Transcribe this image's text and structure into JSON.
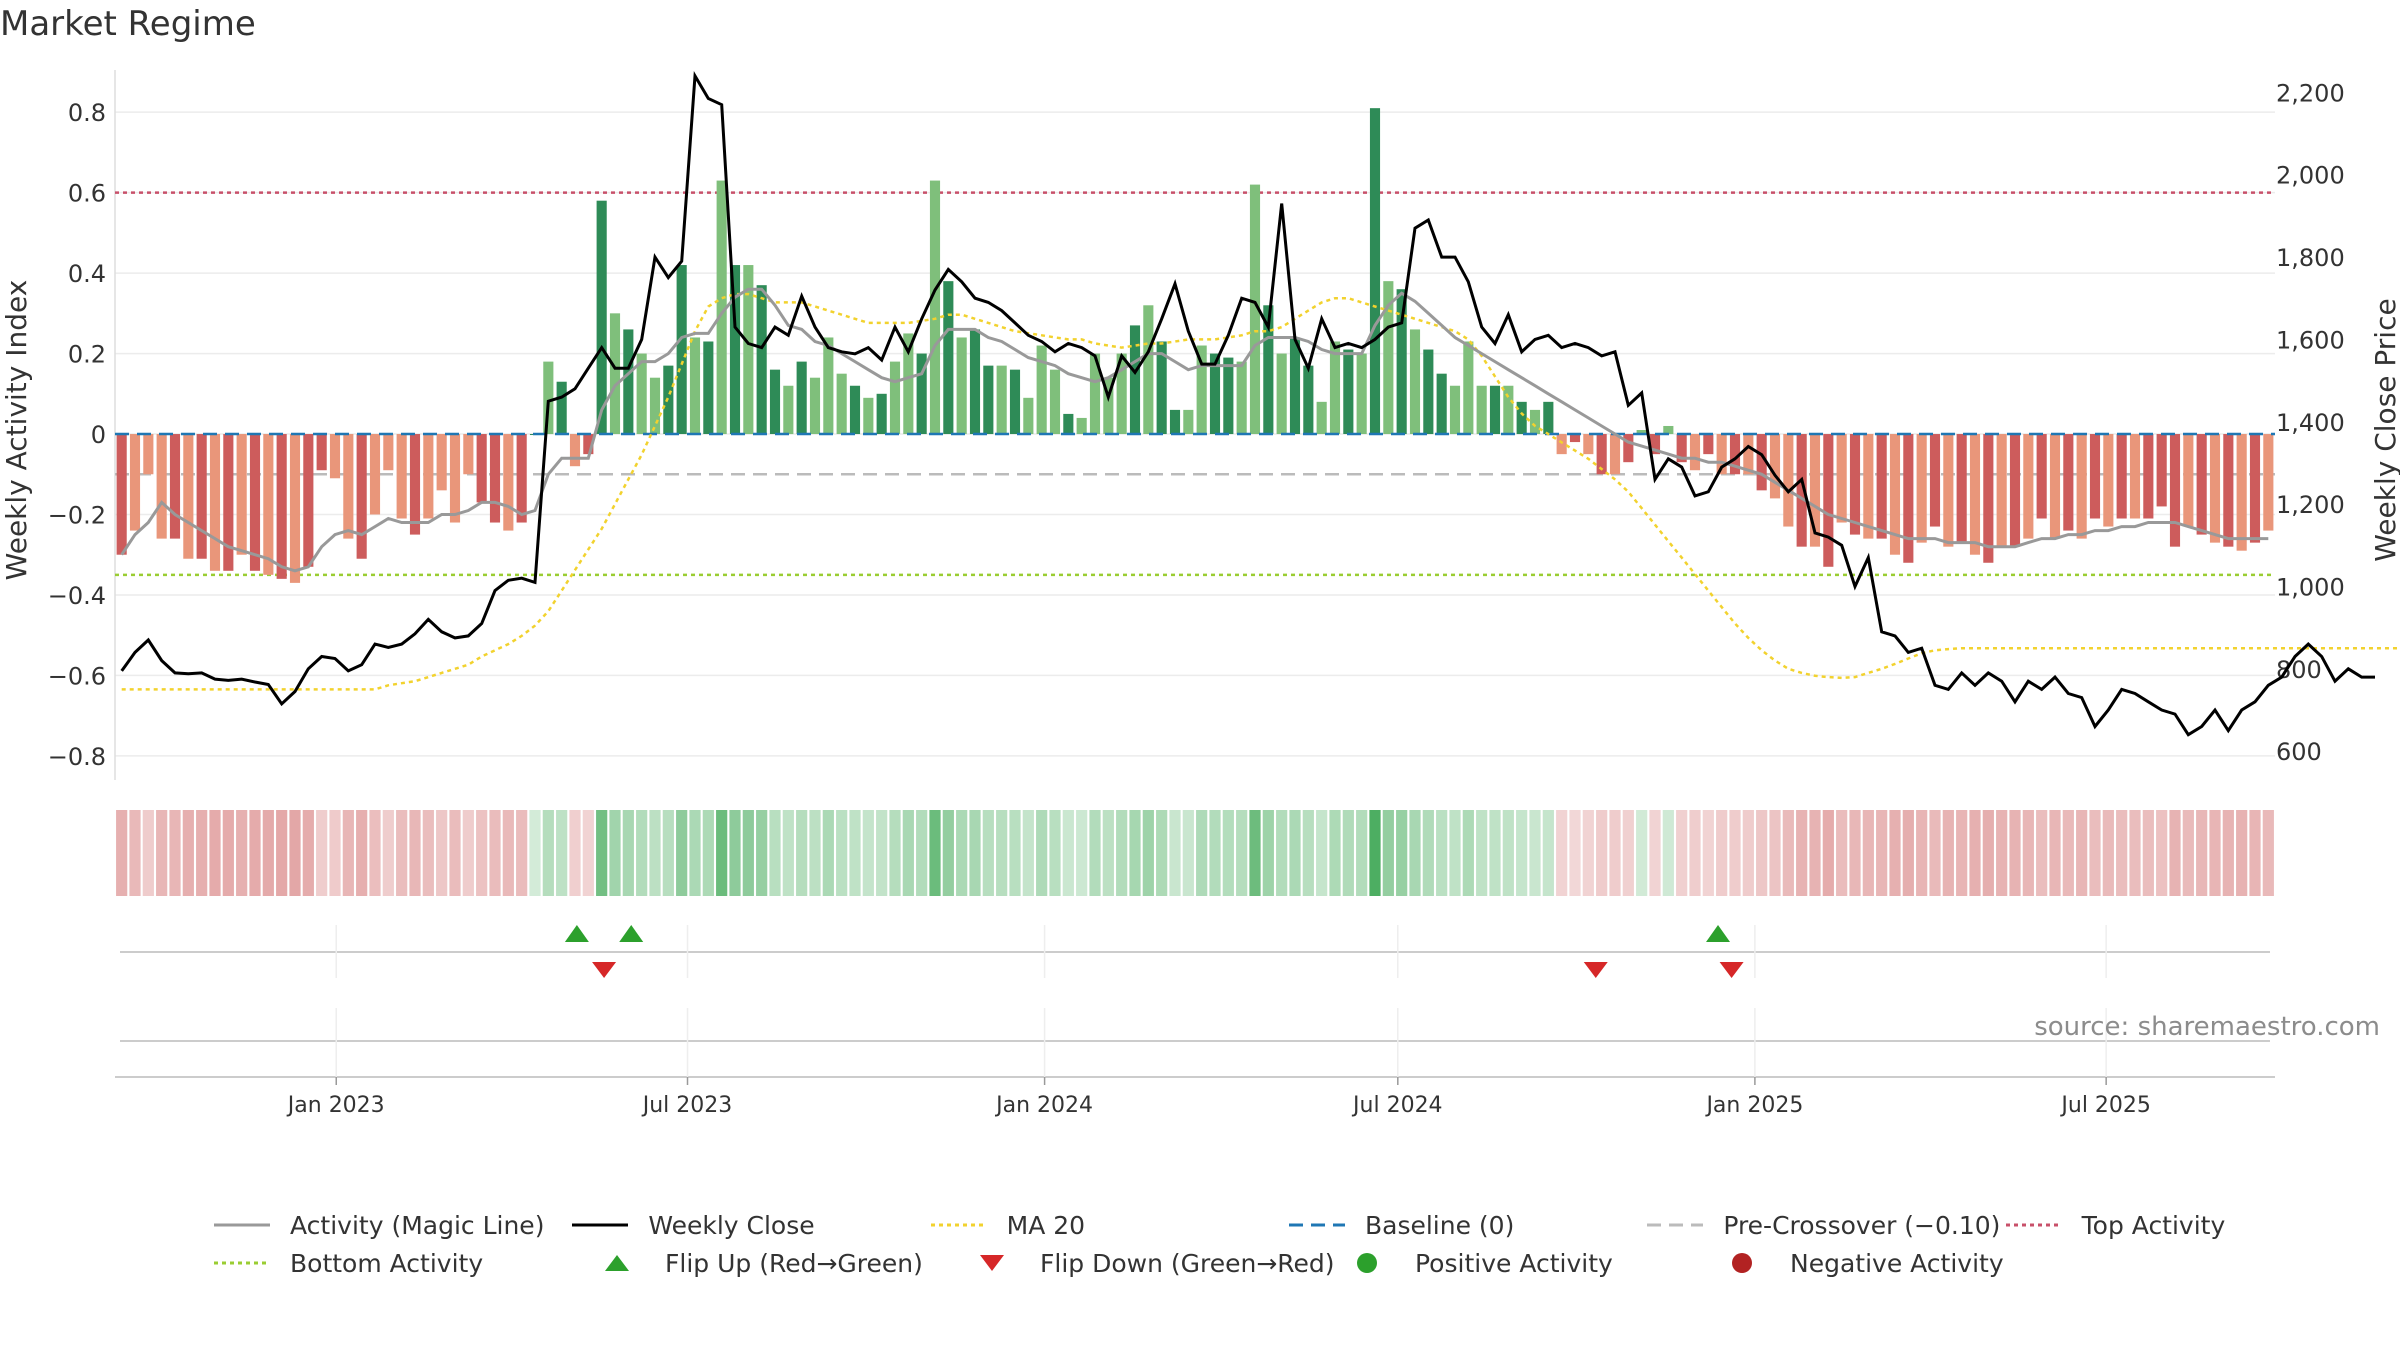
{
  "title": "Market Regime",
  "source": "source: sharemaestro.com",
  "colors": {
    "pos_strong": "#2e8b57",
    "pos_light": "#7fbf7b",
    "neg_strong": "#cd5c5c",
    "neg_light": "#e9967a",
    "activity_line": "#999999",
    "close_line": "#000000",
    "ma20": "#f2d22e",
    "baseline": "#1f77b4",
    "pre_crossover": "#bbbbbb",
    "top_activity": "#c8506a",
    "bottom_activity": "#9acd32",
    "flip_up": "#2ca02c",
    "flip_down": "#d62728"
  },
  "chart_data": {
    "type": "bar",
    "title": "Market Regime",
    "ylabel": "Weekly Activity Index",
    "y2label": "Weekly Close Price",
    "ylim": [
      -0.86,
      0.88
    ],
    "y2lim": [
      530,
      2230
    ],
    "yticks": [
      "0.8",
      "0.6",
      "0.4",
      "0.2",
      "0",
      "−0.2",
      "−0.4",
      "−0.6",
      "−0.8"
    ],
    "ytick_values": [
      0.8,
      0.6,
      0.4,
      0.2,
      0,
      -0.2,
      -0.4,
      -0.6,
      -0.8
    ],
    "y2ticks": [
      "2,200",
      "2,000",
      "1,800",
      "1,600",
      "1,400",
      "1,200",
      "1,000",
      "800",
      "600"
    ],
    "y2tick_values": [
      2200,
      2000,
      1800,
      1600,
      1400,
      1200,
      1000,
      800,
      600
    ],
    "x_start": "2022-09-09",
    "x_end": "2025-09-26",
    "xticks": [
      "Jan 2023",
      "Jul 2023",
      "Jan 2024",
      "Jul 2024",
      "Jan 2025",
      "Jul 2025"
    ],
    "xtick_dates": [
      "2023-01-01",
      "2023-07-01",
      "2024-01-01",
      "2024-07-01",
      "2025-01-01",
      "2025-07-01"
    ],
    "grid": true,
    "legend_placement": "bottom",
    "reference_lines": {
      "top_activity": 0.6,
      "bottom_activity": -0.35,
      "baseline": 0,
      "pre_crossover": -0.1
    },
    "activity_values": [
      -0.3,
      -0.24,
      -0.1,
      -0.26,
      -0.26,
      -0.31,
      -0.31,
      -0.34,
      -0.34,
      -0.3,
      -0.34,
      -0.35,
      -0.36,
      -0.37,
      -0.33,
      -0.09,
      -0.11,
      -0.26,
      -0.31,
      -0.2,
      -0.09,
      -0.21,
      -0.25,
      -0.21,
      -0.14,
      -0.22,
      -0.1,
      -0.17,
      -0.22,
      -0.24,
      -0.22,
      0.0,
      0.18,
      0.13,
      -0.08,
      -0.05,
      0.58,
      0.3,
      0.26,
      0.2,
      0.14,
      0.17,
      0.42,
      0.24,
      0.23,
      0.63,
      0.42,
      0.42,
      0.37,
      0.16,
      0.12,
      0.18,
      0.14,
      0.24,
      0.15,
      0.12,
      0.09,
      0.1,
      0.18,
      0.25,
      0.2,
      0.63,
      0.38,
      0.24,
      0.26,
      0.17,
      0.17,
      0.16,
      0.09,
      0.22,
      0.16,
      0.05,
      0.04,
      0.2,
      0.14,
      0.2,
      0.27,
      0.32,
      0.23,
      0.06,
      0.06,
      0.22,
      0.2,
      0.19,
      0.18,
      0.62,
      0.32,
      0.2,
      0.24,
      0.17,
      0.08,
      0.23,
      0.21,
      0.2,
      0.81,
      0.38,
      0.36,
      0.26,
      0.21,
      0.15,
      0.12,
      0.23,
      0.12,
      0.12,
      0.12,
      0.08,
      0.06,
      0.08,
      -0.05,
      -0.02,
      -0.05,
      -0.1,
      -0.1,
      -0.07,
      0.01,
      -0.05,
      0.02,
      -0.07,
      -0.09,
      -0.05,
      -0.1,
      -0.1,
      -0.1,
      -0.14,
      -0.16,
      -0.23,
      -0.28,
      -0.28,
      -0.33,
      -0.22,
      -0.25,
      -0.26,
      -0.26,
      -0.3,
      -0.32,
      -0.27,
      -0.23,
      -0.28,
      -0.27,
      -0.3,
      -0.32,
      -0.28,
      -0.28,
      -0.26,
      -0.21,
      -0.26,
      -0.24,
      -0.26,
      -0.21,
      -0.23,
      -0.21,
      -0.21,
      -0.21,
      -0.18,
      -0.28,
      -0.23,
      -0.25,
      -0.27,
      -0.28,
      -0.29,
      -0.27,
      -0.24
    ],
    "activity_magic_line": [
      -0.3,
      -0.25,
      -0.22,
      -0.17,
      -0.2,
      -0.22,
      -0.24,
      -0.26,
      -0.28,
      -0.29,
      -0.3,
      -0.31,
      -0.33,
      -0.34,
      -0.33,
      -0.28,
      -0.25,
      -0.24,
      -0.25,
      -0.23,
      -0.21,
      -0.22,
      -0.22,
      -0.22,
      -0.2,
      -0.2,
      -0.19,
      -0.17,
      -0.17,
      -0.18,
      -0.2,
      -0.19,
      -0.1,
      -0.06,
      -0.06,
      -0.06,
      0.06,
      0.12,
      0.15,
      0.18,
      0.18,
      0.2,
      0.24,
      0.25,
      0.25,
      0.3,
      0.34,
      0.36,
      0.36,
      0.32,
      0.27,
      0.26,
      0.23,
      0.22,
      0.2,
      0.18,
      0.16,
      0.14,
      0.13,
      0.14,
      0.15,
      0.22,
      0.26,
      0.26,
      0.26,
      0.24,
      0.23,
      0.21,
      0.19,
      0.18,
      0.17,
      0.15,
      0.14,
      0.13,
      0.14,
      0.16,
      0.18,
      0.2,
      0.2,
      0.18,
      0.16,
      0.17,
      0.17,
      0.17,
      0.17,
      0.22,
      0.24,
      0.24,
      0.24,
      0.23,
      0.21,
      0.2,
      0.2,
      0.2,
      0.27,
      0.32,
      0.35,
      0.33,
      0.3,
      0.27,
      0.24,
      0.22,
      0.2,
      0.18,
      0.16,
      0.14,
      0.12,
      0.1,
      0.08,
      0.06,
      0.04,
      0.02,
      0.0,
      -0.02,
      -0.03,
      -0.04,
      -0.05,
      -0.06,
      -0.06,
      -0.07,
      -0.07,
      -0.08,
      -0.09,
      -0.1,
      -0.12,
      -0.14,
      -0.16,
      -0.18,
      -0.2,
      -0.21,
      -0.22,
      -0.23,
      -0.24,
      -0.25,
      -0.26,
      -0.26,
      -0.26,
      -0.27,
      -0.27,
      -0.27,
      -0.28,
      -0.28,
      -0.28,
      -0.27,
      -0.26,
      -0.26,
      -0.25,
      -0.25,
      -0.24,
      -0.24,
      -0.23,
      -0.23,
      -0.22,
      -0.22,
      -0.22,
      -0.23,
      -0.24,
      -0.25,
      -0.26,
      -0.26,
      -0.26,
      -0.26
    ],
    "weekly_close": [
      795,
      840,
      870,
      820,
      790,
      788,
      790,
      775,
      772,
      775,
      768,
      762,
      715,
      745,
      800,
      830,
      825,
      795,
      810,
      860,
      852,
      860,
      885,
      920,
      890,
      875,
      880,
      910,
      990,
      1015,
      1020,
      1010,
      1450,
      1460,
      1480,
      1530,
      1580,
      1530,
      1530,
      1600,
      1800,
      1750,
      1790,
      2240,
      2185,
      2170,
      1630,
      1590,
      1580,
      1630,
      1610,
      1705,
      1630,
      1580,
      1570,
      1565,
      1580,
      1550,
      1630,
      1570,
      1650,
      1720,
      1770,
      1740,
      1700,
      1690,
      1670,
      1640,
      1610,
      1595,
      1570,
      1590,
      1580,
      1560,
      1460,
      1560,
      1520,
      1570,
      1650,
      1735,
      1620,
      1540,
      1540,
      1610,
      1700,
      1690,
      1630,
      1930,
      1600,
      1530,
      1650,
      1580,
      1590,
      1580,
      1600,
      1630,
      1640,
      1870,
      1890,
      1800,
      1800,
      1740,
      1630,
      1590,
      1660,
      1570,
      1600,
      1610,
      1580,
      1590,
      1580,
      1560,
      1570,
      1440,
      1470,
      1260,
      1310,
      1290,
      1220,
      1230,
      1290,
      1310,
      1340,
      1320,
      1270,
      1230,
      1260,
      1130,
      1120,
      1100,
      1000,
      1070,
      890,
      880,
      840,
      850,
      760,
      750,
      790,
      760,
      790,
      770,
      720,
      770,
      750,
      780,
      740,
      730,
      660,
      700,
      750,
      740,
      720,
      700,
      690,
      640,
      660,
      700,
      650,
      700,
      720,
      760,
      780,
      830,
      860,
      830,
      770,
      800,
      780,
      780
    ],
    "ma20": [
      750,
      750,
      750,
      750,
      750,
      750,
      750,
      750,
      750,
      750,
      750,
      750,
      750,
      750,
      750,
      750,
      750,
      750,
      750,
      750,
      760,
      765,
      770,
      780,
      790,
      800,
      810,
      830,
      845,
      860,
      880,
      905,
      940,
      990,
      1040,
      1090,
      1140,
      1200,
      1260,
      1320,
      1390,
      1460,
      1540,
      1620,
      1680,
      1700,
      1710,
      1710,
      1700,
      1690,
      1690,
      1690,
      1680,
      1670,
      1660,
      1650,
      1640,
      1640,
      1640,
      1640,
      1645,
      1650,
      1660,
      1660,
      1650,
      1640,
      1630,
      1620,
      1615,
      1610,
      1605,
      1600,
      1600,
      1590,
      1585,
      1580,
      1585,
      1590,
      1590,
      1595,
      1600,
      1600,
      1600,
      1605,
      1610,
      1620,
      1620,
      1630,
      1650,
      1670,
      1690,
      1700,
      1700,
      1690,
      1680,
      1670,
      1660,
      1650,
      1640,
      1630,
      1620,
      1600,
      1560,
      1510,
      1460,
      1420,
      1390,
      1370,
      1350,
      1330,
      1310,
      1285,
      1260,
      1230,
      1190,
      1150,
      1110,
      1070,
      1030,
      990,
      950,
      910,
      875,
      845,
      820,
      800,
      790,
      783,
      780,
      778,
      780,
      790,
      800,
      812,
      825,
      838,
      845,
      848,
      850,
      850,
      850,
      850,
      850,
      850,
      850,
      850,
      850,
      850,
      850,
      850,
      850,
      850,
      850,
      850,
      850,
      850,
      850,
      850,
      850,
      850,
      850,
      850,
      850,
      850,
      850,
      850,
      850,
      850,
      850,
      850,
      850,
      850
    ],
    "flip_up": [
      "2023-05-05",
      "2023-06-02",
      "2024-12-13"
    ],
    "flip_down": [
      "2023-05-19",
      "2024-10-11",
      "2024-12-20"
    ],
    "series": [
      {
        "name": "Activity (Magic Line)"
      },
      {
        "name": "Weekly Close"
      },
      {
        "name": "MA 20"
      },
      {
        "name": "Baseline (0)"
      },
      {
        "name": "Pre-Crossover (−0.10)"
      },
      {
        "name": "Top Activity"
      },
      {
        "name": "Bottom Activity"
      },
      {
        "name": "Flip Up (Red→Green)"
      },
      {
        "name": "Flip Down (Green→Red)"
      },
      {
        "name": "Positive Activity"
      },
      {
        "name": "Negative Activity"
      }
    ]
  },
  "legend": {
    "items": [
      {
        "label": "Activity (Magic Line)",
        "kind": "line",
        "color": "#999999",
        "dash": ""
      },
      {
        "label": "Weekly Close",
        "kind": "line",
        "color": "#000000",
        "dash": ""
      },
      {
        "label": "MA 20",
        "kind": "line",
        "color": "#f2d22e",
        "dash": "4,4"
      },
      {
        "label": "Baseline (0)",
        "kind": "line",
        "color": "#1f77b4",
        "dash": "14,8"
      },
      {
        "label": "Pre-Crossover (−0.10)",
        "kind": "line",
        "color": "#bbbbbb",
        "dash": "14,8"
      },
      {
        "label": "Top Activity",
        "kind": "line",
        "color": "#c8506a",
        "dash": "4,4"
      },
      {
        "label": "Bottom Activity",
        "kind": "line",
        "color": "#9acd32",
        "dash": "4,4"
      },
      {
        "label": "Flip Up (Red→Green)",
        "kind": "tri-up",
        "color": "#2ca02c",
        "dash": ""
      },
      {
        "label": "Flip Down (Green→Red)",
        "kind": "tri-down",
        "color": "#d62728",
        "dash": ""
      },
      {
        "label": "Positive Activity",
        "kind": "dot",
        "color": "#2ca02c",
        "dash": ""
      },
      {
        "label": "Negative Activity",
        "kind": "dot",
        "color": "#b22222",
        "dash": ""
      }
    ]
  }
}
